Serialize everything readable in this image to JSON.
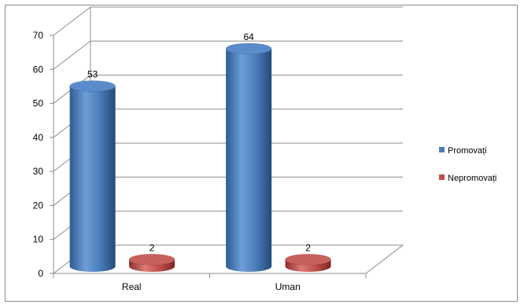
{
  "chart_data": {
    "type": "bar",
    "style": "3d-cylinder",
    "categories": [
      "Real",
      "Uman"
    ],
    "series": [
      {
        "name": "Promovați",
        "values": [
          53,
          64
        ],
        "color": "#4a7ebb"
      },
      {
        "name": "Nepromovați",
        "values": [
          2,
          2
        ],
        "color": "#c0504d"
      }
    ],
    "ylim": [
      0,
      70
    ],
    "yticks": [
      "0",
      "10",
      "20",
      "30",
      "40",
      "50",
      "60",
      "70"
    ],
    "data_labels": [
      "53",
      "2",
      "64",
      "2"
    ],
    "grid": true,
    "legend_position": "right"
  }
}
